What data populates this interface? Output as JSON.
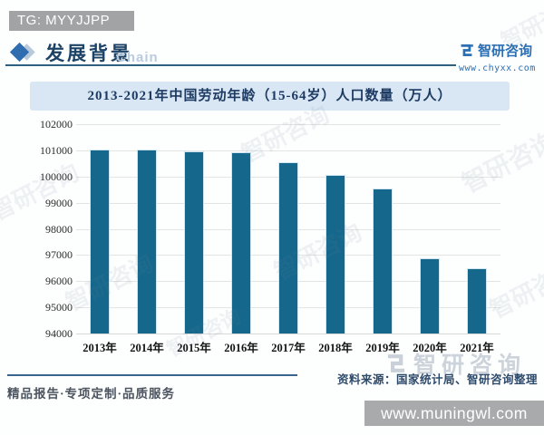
{
  "header": {
    "tg_label": "TG: MYYJJPP",
    "section_title": "发展背景",
    "watermark_chain": "Chain",
    "brand": {
      "name": "智研咨询",
      "website": "www.chyxx.com"
    }
  },
  "chart_data": {
    "type": "bar",
    "title": "2013-2021年中国劳动年龄（15-64岁）人口数量（万人）",
    "categories": [
      "2013年",
      "2014年",
      "2015年",
      "2016年",
      "2017年",
      "2018年",
      "2019年",
      "2020年",
      "2021年"
    ],
    "values": [
      101041,
      101032,
      100978,
      100943,
      100553,
      100065,
      99552,
      96871,
      96481
    ],
    "unit": "万人",
    "ylim": [
      94000,
      102000
    ],
    "ytick_step": 1000,
    "grid": true,
    "legend": "none",
    "bar_color": "#15688c"
  },
  "watermarks": {
    "logo_glyph": "智研咨询",
    "bottom_brand": "智研咨询"
  },
  "footer": {
    "source_note": "资料来源：国家统计局、智研咨询整理",
    "tagline": "精品报告·专项定制·品质服务",
    "url_bar": "www.muningwl.com"
  },
  "colors": {
    "accent_blue": "#2a6fb3",
    "bar": "#15688c",
    "title_band_bg": "#d9e7f4",
    "title_navy": "#1d3a62",
    "gray_badge": "#a2a3a4"
  }
}
